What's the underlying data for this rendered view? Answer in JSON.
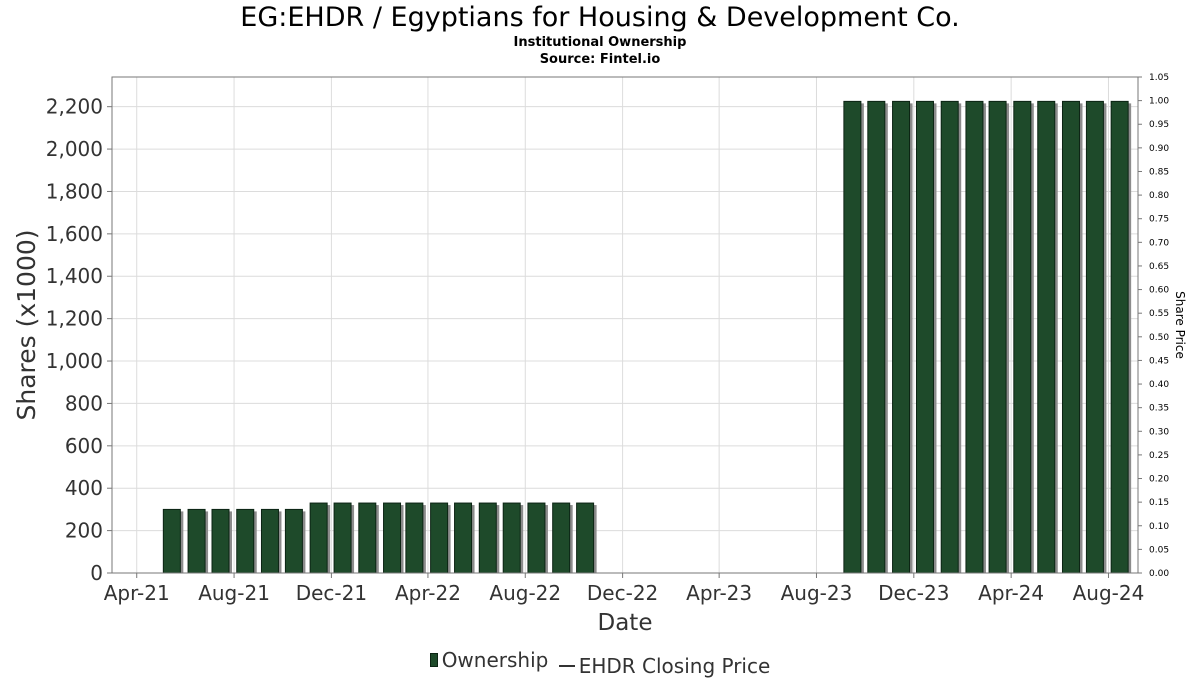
{
  "title": "EG:EHDR / Egyptians for Housing & Development Co.",
  "subtitle": "Institutional Ownership",
  "source": "Source: Fintel.io",
  "colors": {
    "bar": "#1e4a2a",
    "bar_edge": "#0c2414",
    "shadow": "#8c8c8c",
    "grid": "#dcdcdc"
  },
  "chart_data": {
    "type": "bar",
    "title": "EG:EHDR / Egyptians for Housing & Development Co.",
    "xlabel": "Date",
    "ylabel": "Shares (x1000)",
    "y2label": "Share Price",
    "ylim": [
      0,
      2340
    ],
    "y2lim": [
      0,
      1.05
    ],
    "grid": true,
    "legend_position": "bottom",
    "x_ticks": [
      "Apr-21",
      "Aug-21",
      "Dec-21",
      "Apr-22",
      "Aug-22",
      "Dec-22",
      "Apr-23",
      "Aug-23",
      "Dec-23",
      "Apr-24",
      "Aug-24"
    ],
    "x_tick_dates": [
      "2021-04-01",
      "2021-08-01",
      "2021-12-01",
      "2022-04-01",
      "2022-08-01",
      "2022-12-01",
      "2023-04-01",
      "2023-08-01",
      "2023-12-01",
      "2024-04-01",
      "2024-08-01"
    ],
    "y_ticks": [
      "0",
      "200",
      "400",
      "600",
      "800",
      "1,000",
      "1,200",
      "1,400",
      "1,600",
      "1,800",
      "2,000",
      "2,200"
    ],
    "y2_ticks": [
      "0.00",
      "0.05",
      "0.10",
      "0.15",
      "0.20",
      "0.25",
      "0.30",
      "0.35",
      "0.40",
      "0.45",
      "0.50",
      "0.55",
      "0.60",
      "0.65",
      "0.70",
      "0.75",
      "0.80",
      "0.85",
      "0.90",
      "0.95",
      "1.00",
      "1.05"
    ],
    "series": [
      {
        "name": "Ownership",
        "dates": [
          "2021-05-15",
          "2021-06-15",
          "2021-07-15",
          "2021-08-15",
          "2021-09-15",
          "2021-10-15",
          "2021-11-15",
          "2021-12-15",
          "2022-01-15",
          "2022-02-15",
          "2022-03-15",
          "2022-04-15",
          "2022-05-15",
          "2022-06-15",
          "2022-07-15",
          "2022-08-15",
          "2022-09-15",
          "2022-10-15",
          "2023-09-15",
          "2023-10-15",
          "2023-11-15",
          "2023-12-15",
          "2024-01-15",
          "2024-02-15",
          "2024-03-15",
          "2024-04-15",
          "2024-05-15",
          "2024-06-15",
          "2024-07-15",
          "2024-08-15"
        ],
        "values": [
          300,
          300,
          300,
          300,
          300,
          300,
          330,
          330,
          330,
          330,
          330,
          330,
          330,
          330,
          330,
          330,
          330,
          330,
          2225,
          2225,
          2225,
          2225,
          2225,
          2225,
          2225,
          2225,
          2225,
          2225,
          2225,
          2225
        ]
      },
      {
        "name": "EHDR Closing Price",
        "values": []
      }
    ]
  }
}
